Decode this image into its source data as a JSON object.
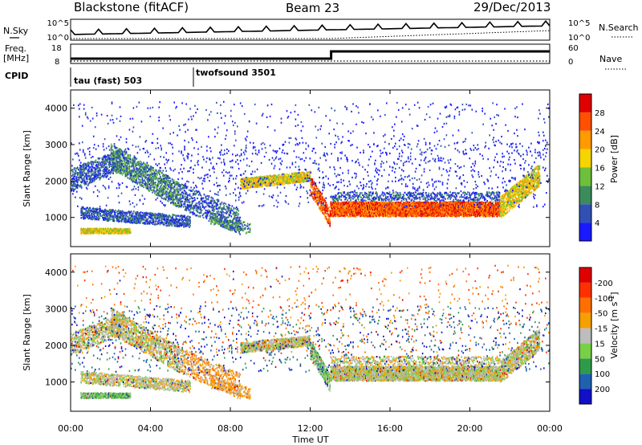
{
  "header": {
    "station": "Blackstone (fitACF)",
    "beam": "Beam 23",
    "date": "29/Dec/2013"
  },
  "strip": {
    "nsky_label": "N.Sky",
    "nsky_ticks": [
      "10^5",
      "10^0"
    ],
    "nsearch_label": "N.Search",
    "nsearch_ticks": [
      "10^5",
      "10^0"
    ],
    "freq_label": "Freq.",
    "freq_unit": "[MHz]",
    "freq_ticks": [
      "18",
      "8"
    ],
    "nave_label": "Nave",
    "nave_ticks": [
      "60",
      "0"
    ],
    "cpid_label": "CPID",
    "cpid_1": "tau (fast) 503",
    "cpid_2": "twofsound 3501"
  },
  "chart_data": [
    {
      "type": "heatmap",
      "name": "power",
      "ylabel": "Slant Range [km]",
      "yticks": [
        "1000",
        "2000",
        "3000",
        "4000"
      ],
      "ylim": [
        200,
        4500
      ],
      "xticks": [
        "00:00",
        "04:00",
        "08:00",
        "12:00",
        "16:00",
        "20:00",
        "00:00"
      ],
      "colorbar_label": "Power [dB]",
      "colorbar_ticks": [
        "4",
        "8",
        "12",
        "16",
        "20",
        "24",
        "28"
      ],
      "colors": [
        "#1a1aff",
        "#3050b4",
        "#3b8c5a",
        "#6dbf3c",
        "#f5d400",
        "#ff9a00",
        "#ff5000",
        "#e00000"
      ]
    },
    {
      "type": "heatmap",
      "name": "velocity",
      "ylabel": "Slant Range [km]",
      "yticks": [
        "1000",
        "2000",
        "3000",
        "4000"
      ],
      "ylim": [
        200,
        4500
      ],
      "xticks": [
        "00:00",
        "04:00",
        "08:00",
        "12:00",
        "16:00",
        "20:00",
        "00:00"
      ],
      "xlabel": "Time UT",
      "colorbar_label": "Velocity [m s^-1]",
      "colorbar_ticks": [
        "200",
        "100",
        "50",
        "15",
        "-15",
        "-50",
        "-100",
        "-200"
      ],
      "colors": [
        "#1010c8",
        "#2060b0",
        "#2e9b4a",
        "#78d046",
        "#bdbdbd",
        "#f5a000",
        "#ff7000",
        "#ff3000",
        "#e00000"
      ]
    }
  ]
}
